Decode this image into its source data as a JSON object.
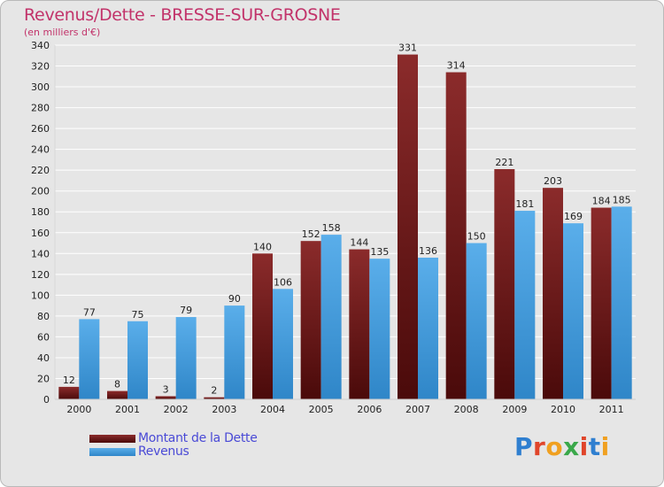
{
  "title": "Revenus/Dette - BRESSE-SUR-GROSNE",
  "subtitle": "(en milliers d'€)",
  "legend": {
    "debt_label": "Montant de la Dette",
    "revenue_label": "Revenus"
  },
  "logo": {
    "text": "Proxiti",
    "letters": [
      "P",
      "r",
      "o",
      "x",
      "i",
      "t",
      "i"
    ]
  },
  "colors": {
    "debt_top": "#8b2b2b",
    "debt_bottom": "#4a0a0a",
    "revenue_top": "#5aaeea",
    "revenue_bottom": "#2f86c8",
    "title": "#c2336a",
    "legend_text": "#4a4ad6",
    "grid": "#ffffff",
    "logo": [
      "#2f7fd0",
      "#e0452b",
      "#f0a020",
      "#3aa84a",
      "#e0452b",
      "#2f7fd0",
      "#f0a020"
    ]
  },
  "chart_data": {
    "type": "bar",
    "title": "Revenus/Dette - BRESSE-SUR-GROSNE",
    "ylabel": "(en milliers d'€)",
    "xlabel": "",
    "categories": [
      "2000",
      "2001",
      "2002",
      "2003",
      "2004",
      "2005",
      "2006",
      "2007",
      "2008",
      "2009",
      "2010",
      "2011"
    ],
    "series": [
      {
        "name": "Montant de la Dette",
        "values": [
          12,
          8,
          3,
          2,
          140,
          152,
          144,
          331,
          314,
          221,
          203,
          184
        ]
      },
      {
        "name": "Revenus",
        "values": [
          77,
          75,
          79,
          90,
          106,
          158,
          135,
          136,
          150,
          181,
          169,
          185
        ]
      }
    ],
    "ylim": [
      0,
      340
    ],
    "yticks": [
      0,
      20,
      40,
      60,
      80,
      100,
      120,
      140,
      160,
      180,
      200,
      220,
      240,
      260,
      280,
      300,
      320,
      340
    ],
    "grid": true,
    "legend_position": "bottom-left"
  }
}
